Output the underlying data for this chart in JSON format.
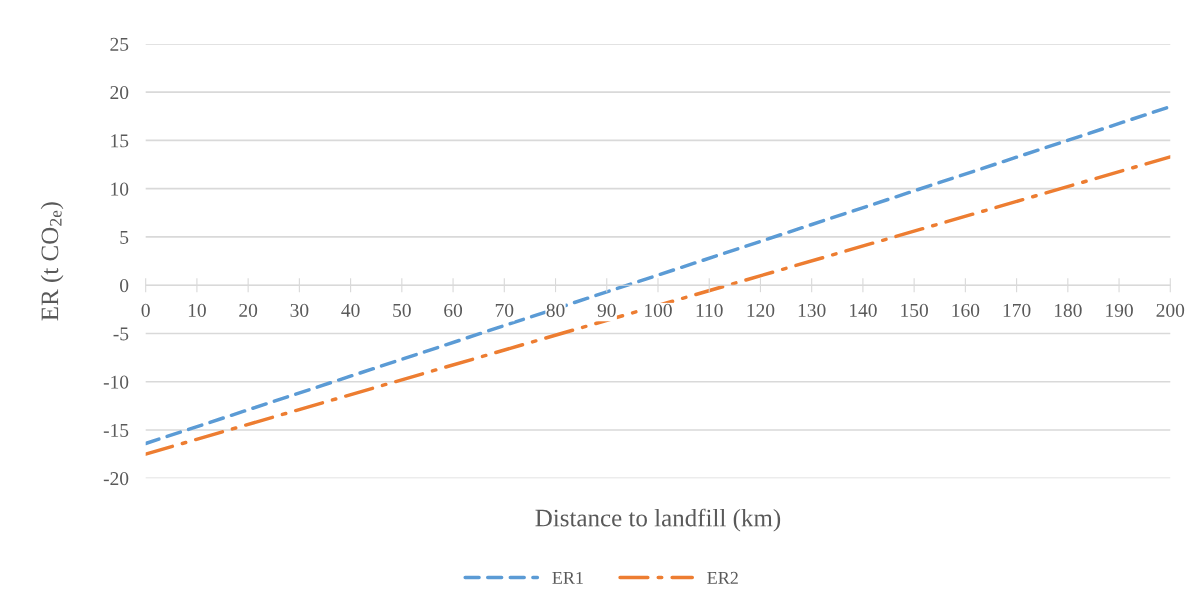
{
  "chart_data": {
    "type": "line",
    "xlabel": "Distance to landfill (km)",
    "ylabel": "ER (t CO$_{2e}$)",
    "x": [
      0,
      200
    ],
    "series": [
      {
        "name": "ER1",
        "color": "#5b9bd5",
        "values": [
          -16.4,
          18.5
        ],
        "line_style": "dashed"
      },
      {
        "name": "ER2",
        "color": "#ed7d31",
        "values": [
          -17.5,
          13.3
        ],
        "line_style": "dashdot"
      }
    ],
    "xlim": [
      0,
      200
    ],
    "xticks": [
      0,
      10,
      20,
      30,
      40,
      50,
      60,
      70,
      80,
      90,
      100,
      110,
      120,
      130,
      140,
      150,
      160,
      170,
      180,
      190,
      200
    ],
    "ylim": [
      -20,
      25
    ],
    "yticks": [
      -20,
      -15,
      -10,
      -5,
      0,
      5,
      10,
      15,
      20,
      25
    ],
    "grid": "y",
    "legend": "bottom",
    "marker": "none"
  }
}
